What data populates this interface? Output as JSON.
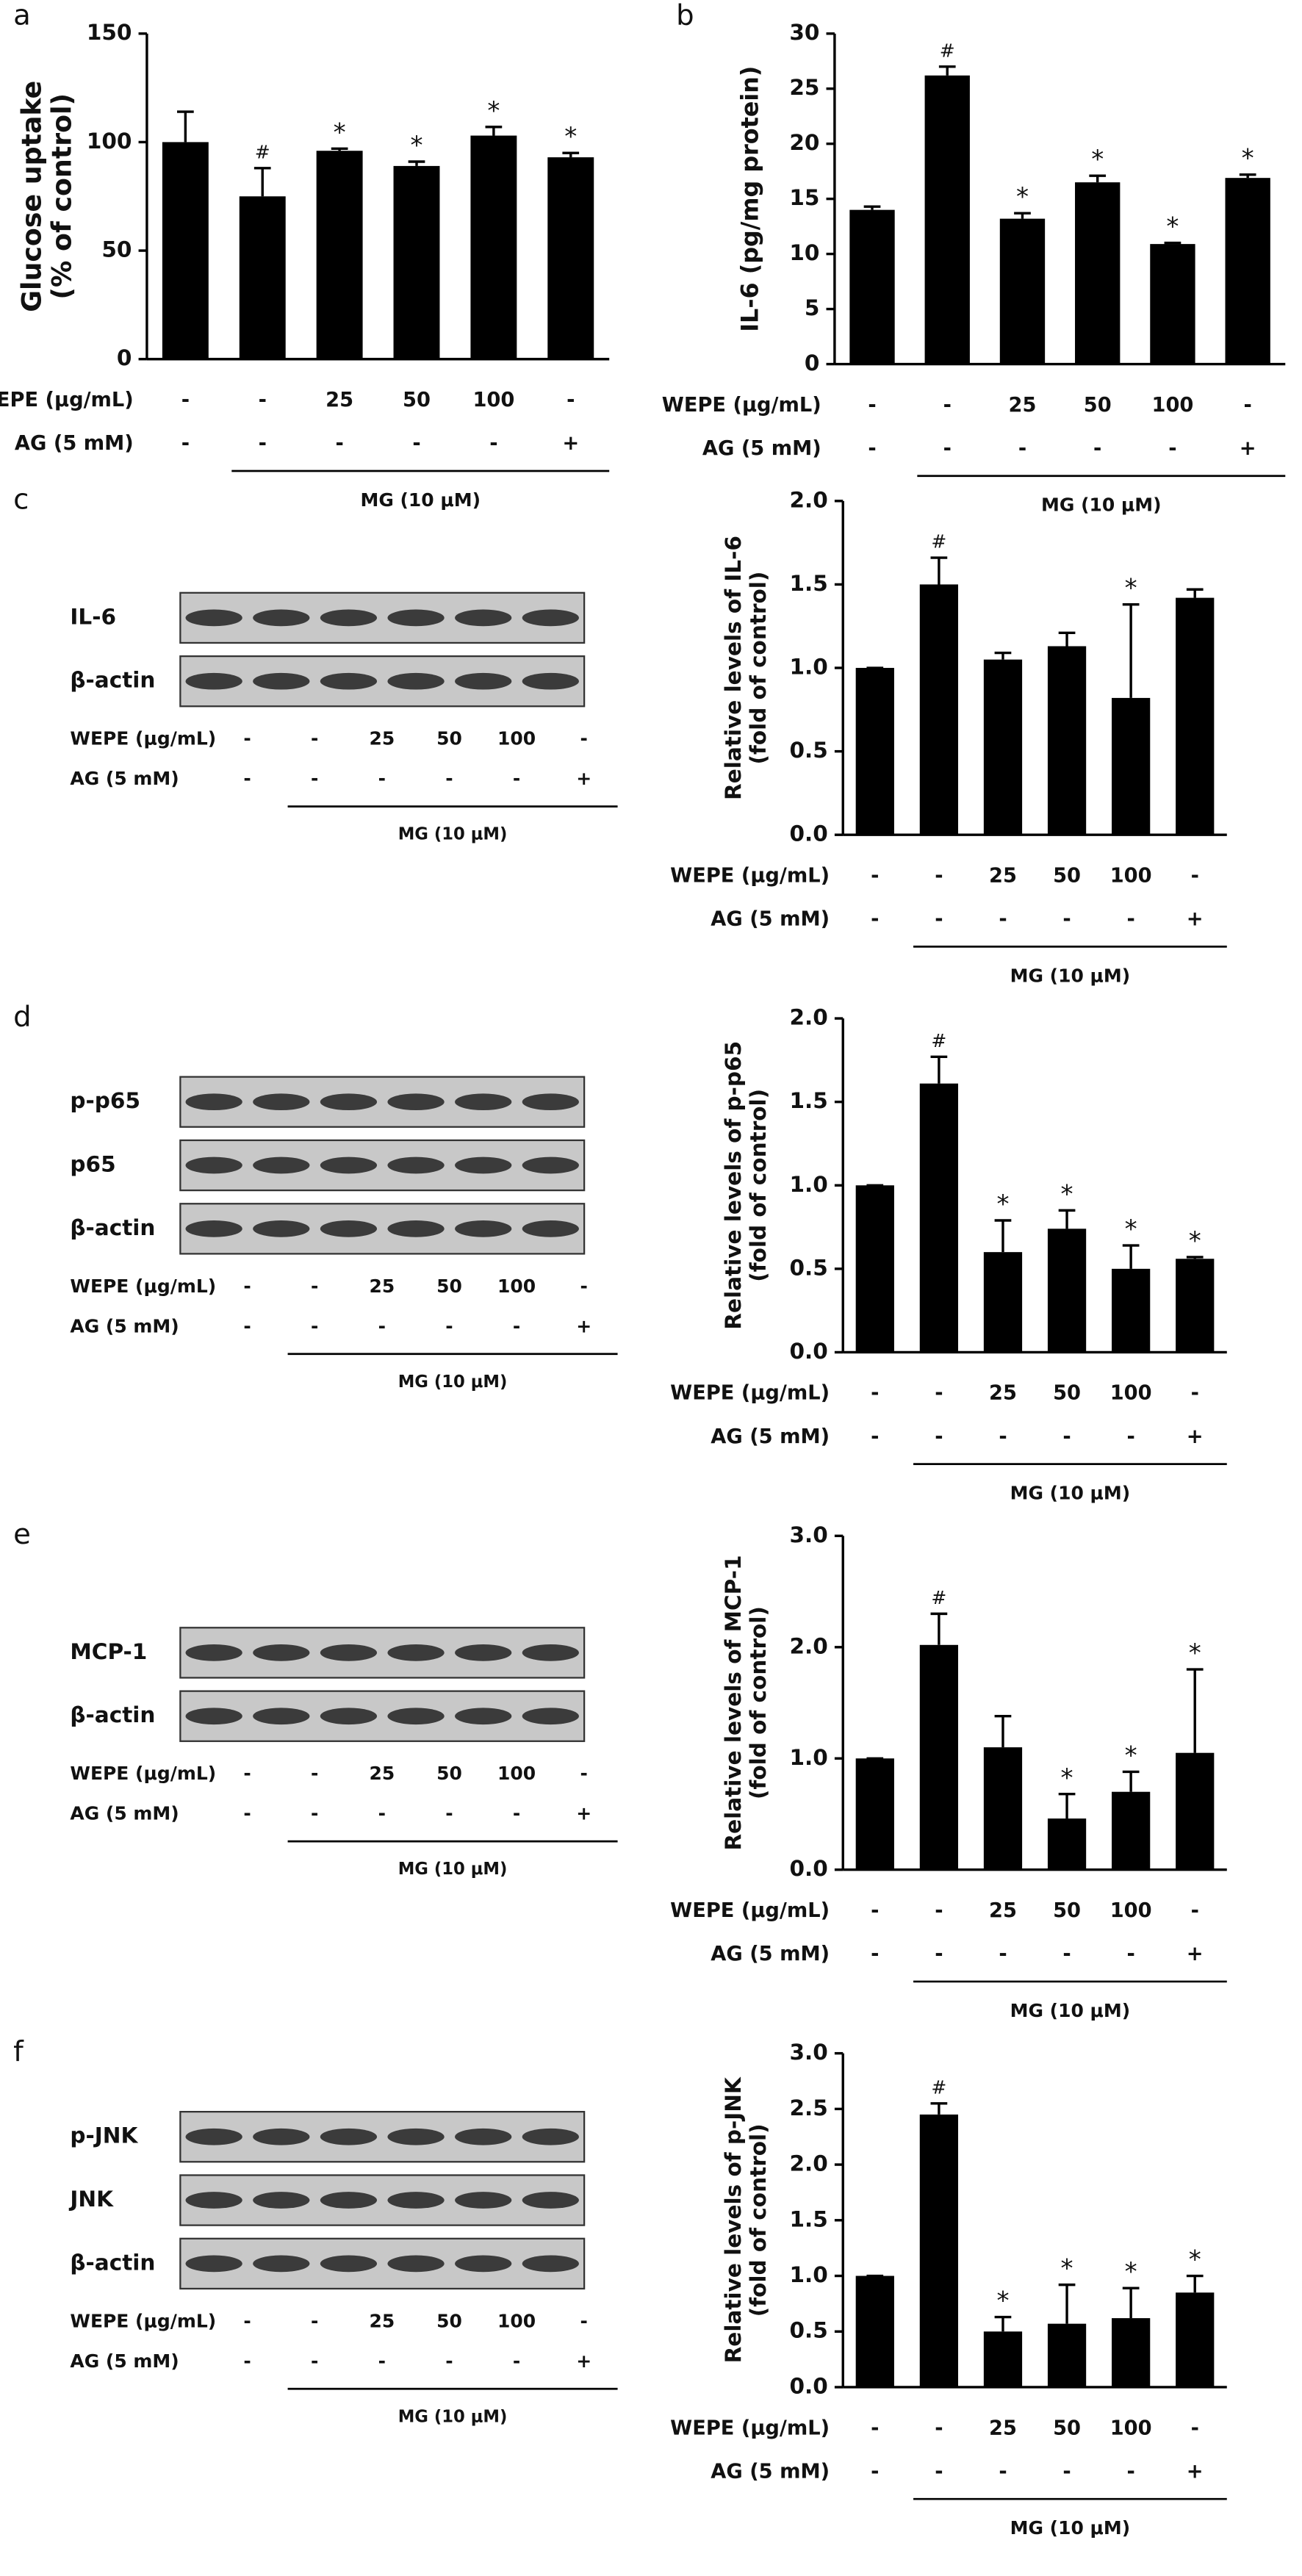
{
  "chart_data": [
    {
      "type": "bar",
      "panel_label": "a",
      "ylabel": [
        "Glucose uptake",
        "(% of control)"
      ],
      "ylim": [
        0,
        150
      ],
      "yticks": [
        0,
        50,
        100,
        150
      ],
      "values": [
        100,
        75,
        96,
        89,
        103,
        93
      ],
      "errors": [
        14,
        13,
        1,
        2,
        4,
        2
      ],
      "annotations": [
        null,
        "#",
        "*",
        "*",
        "*",
        "*"
      ],
      "color": "#000000",
      "treatments": [
        {
          "label": "WEPE (μg/mL)",
          "values": [
            "-",
            "-",
            "25",
            "50",
            "100",
            "-"
          ]
        },
        {
          "label": "AG  (5 mM)",
          "values": [
            "-",
            "-",
            "-",
            "-",
            "-",
            "+"
          ]
        }
      ],
      "group_label": "MG (10 μM)"
    },
    {
      "type": "bar",
      "panel_label": "b",
      "ylabel": [
        "IL-6 (pg/mg protein)"
      ],
      "ylim": [
        0,
        30
      ],
      "yticks": [
        0,
        5,
        10,
        15,
        20,
        25,
        30
      ],
      "values": [
        14,
        26.2,
        13.2,
        16.5,
        10.9,
        16.9
      ],
      "errors": [
        0.3,
        0.8,
        0.5,
        0.6,
        0.1,
        0.3
      ],
      "annotations": [
        null,
        "#",
        "*",
        "*",
        "*",
        "*"
      ],
      "color": "#000000",
      "treatments": [
        {
          "label": "WEPE (μg/mL)",
          "values": [
            "-",
            "-",
            "25",
            "50",
            "100",
            "-"
          ]
        },
        {
          "label": "AG  (5 mM)",
          "values": [
            "-",
            "-",
            "-",
            "-",
            "-",
            "+"
          ]
        }
      ],
      "group_label": "MG (10 μM)"
    },
    {
      "type": "bar",
      "panel_label": "c",
      "ylabel": [
        "Relative levels of IL-6",
        "(fold of control)"
      ],
      "ylim": [
        0,
        2
      ],
      "yticks": [
        {
          "value": 0,
          "label": "0.0"
        },
        0.5,
        {
          "value": 1,
          "label": "1.0"
        },
        1.5,
        {
          "value": 2,
          "label": "2.0"
        }
      ],
      "values": [
        1.0,
        1.5,
        1.05,
        1.13,
        0.82,
        1.42
      ],
      "errors": [
        0,
        0.16,
        0.04,
        0.08,
        0.56,
        0.05
      ],
      "annotations": [
        null,
        "#",
        null,
        null,
        "*",
        null
      ],
      "color": "#000000",
      "treatments": [
        {
          "label": "WEPE (μg/mL)",
          "values": [
            "-",
            "-",
            "25",
            "50",
            "100",
            "-"
          ]
        },
        {
          "label": "AG  (5 mM)",
          "values": [
            "-",
            "-",
            "-",
            "-",
            "-",
            "+"
          ]
        }
      ],
      "group_label": "MG (10 μM)"
    },
    {
      "type": "bar",
      "panel_label": "d",
      "ylabel": [
        "Relative levels of p-p65",
        "(fold of control)"
      ],
      "ylim": [
        0,
        2
      ],
      "yticks": [
        {
          "value": 0,
          "label": "0.0"
        },
        0.5,
        {
          "value": 1,
          "label": "1.0"
        },
        1.5,
        {
          "value": 2,
          "label": "2.0"
        }
      ],
      "values": [
        1.0,
        1.61,
        0.6,
        0.74,
        0.5,
        0.56
      ],
      "errors": [
        0,
        0.16,
        0.19,
        0.11,
        0.14,
        0.01
      ],
      "annotations": [
        null,
        "#",
        "*",
        "*",
        "*",
        "*"
      ],
      "color": "#000000",
      "treatments": [
        {
          "label": "WEPE (μg/mL)",
          "values": [
            "-",
            "-",
            "25",
            "50",
            "100",
            "-"
          ]
        },
        {
          "label": "AG  (5 mM)",
          "values": [
            "-",
            "-",
            "-",
            "-",
            "-",
            "+"
          ]
        }
      ],
      "group_label": "MG (10 μM)"
    },
    {
      "type": "bar",
      "panel_label": "e",
      "ylabel": [
        "Relative levels of MCP-1",
        "(fold of control)"
      ],
      "ylim": [
        0,
        3
      ],
      "yticks": [
        {
          "value": 0,
          "label": "0.0"
        },
        {
          "value": 1,
          "label": "1.0"
        },
        {
          "value": 2,
          "label": "2.0"
        },
        {
          "value": 3,
          "label": "3.0"
        }
      ],
      "values": [
        1.0,
        2.02,
        1.1,
        0.46,
        0.7,
        1.05
      ],
      "errors": [
        0,
        0.28,
        0.28,
        0.22,
        0.18,
        0.75
      ],
      "annotations": [
        null,
        "#",
        null,
        "*",
        "*",
        "*"
      ],
      "color": "#000000",
      "treatments": [
        {
          "label": "WEPE (μg/mL)",
          "values": [
            "-",
            "-",
            "25",
            "50",
            "100",
            "-"
          ]
        },
        {
          "label": "AG  (5 mM)",
          "values": [
            "-",
            "-",
            "-",
            "-",
            "-",
            "+"
          ]
        }
      ],
      "group_label": "MG (10 μM)"
    },
    {
      "type": "bar",
      "panel_label": "f",
      "ylabel": [
        "Relative levels of p-JNK",
        "(fold of control)"
      ],
      "ylim": [
        0,
        3
      ],
      "yticks": [
        {
          "value": 0,
          "label": "0.0"
        },
        0.5,
        {
          "value": 1,
          "label": "1.0"
        },
        1.5,
        {
          "value": 2,
          "label": "2.0"
        },
        2.5,
        {
          "value": 3,
          "label": "3.0"
        }
      ],
      "values": [
        1.0,
        2.45,
        0.5,
        0.57,
        0.62,
        0.85
      ],
      "errors": [
        0,
        0.1,
        0.13,
        0.35,
        0.27,
        0.15
      ],
      "annotations": [
        null,
        "#",
        "*",
        "*",
        "*",
        "*"
      ],
      "color": "#000000",
      "treatments": [
        {
          "label": "WEPE (μg/mL)",
          "values": [
            "-",
            "-",
            "25",
            "50",
            "100",
            "-"
          ]
        },
        {
          "label": "AG  (5 mM)",
          "values": [
            "-",
            "-",
            "-",
            "-",
            "-",
            "+"
          ]
        }
      ],
      "group_label": "MG (10 μM)"
    }
  ],
  "blots": [
    {
      "bands": [
        "IL-6",
        "β-actin"
      ],
      "treatments": [
        {
          "label": "WEPE (μg/mL)",
          "values": [
            "-",
            "-",
            "25",
            "50",
            "100",
            "-"
          ]
        },
        {
          "label": "AG  (5 mM)",
          "values": [
            "-",
            "-",
            "-",
            "-",
            "-",
            "+"
          ]
        }
      ],
      "group_label": "MG (10 μM)"
    },
    {
      "bands": [
        "p-p65",
        "p65",
        "β-actin"
      ],
      "treatments": [
        {
          "label": "WEPE (μg/mL)",
          "values": [
            "-",
            "-",
            "25",
            "50",
            "100",
            "-"
          ]
        },
        {
          "label": "AG  (5 mM)",
          "values": [
            "-",
            "-",
            "-",
            "-",
            "-",
            "+"
          ]
        }
      ],
      "group_label": "MG (10 μM)"
    },
    {
      "bands": [
        "MCP-1",
        "β-actin"
      ],
      "treatments": [
        {
          "label": "WEPE (μg/mL)",
          "values": [
            "-",
            "-",
            "25",
            "50",
            "100",
            "-"
          ]
        },
        {
          "label": "AG  (5 mM)",
          "values": [
            "-",
            "-",
            "-",
            "-",
            "-",
            "+"
          ]
        }
      ],
      "group_label": "MG (10 μM)"
    },
    {
      "bands": [
        "p-JNK",
        "JNK",
        "β-actin"
      ],
      "treatments": [
        {
          "label": "WEPE (μg/mL)",
          "values": [
            "-",
            "-",
            "25",
            "50",
            "100",
            "-"
          ]
        },
        {
          "label": "AG  (5 mM)",
          "values": [
            "-",
            "-",
            "-",
            "-",
            "-",
            "+"
          ]
        }
      ],
      "group_label": "MG (10 μM)"
    }
  ]
}
